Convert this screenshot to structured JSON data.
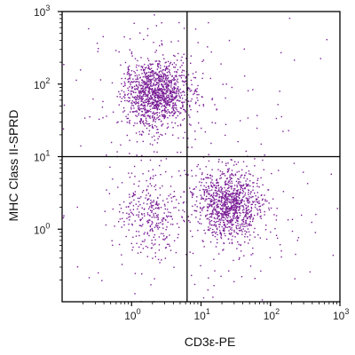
{
  "chart_data": {
    "type": "scatter",
    "title": "",
    "xlabel": "CD3ε-PE",
    "ylabel": "MHC Class II-SPRD",
    "x_scale": "log",
    "y_scale": "log",
    "xlim": [
      0.1,
      1000
    ],
    "ylim": [
      0.1,
      1000
    ],
    "x_ticks": [
      {
        "value": 1,
        "base": "10",
        "exp": "0"
      },
      {
        "value": 10,
        "base": "10",
        "exp": "1"
      },
      {
        "value": 100,
        "base": "10",
        "exp": "2"
      },
      {
        "value": 1000,
        "base": "10",
        "exp": "3"
      }
    ],
    "y_ticks": [
      {
        "value": 1,
        "base": "10",
        "exp": "0"
      },
      {
        "value": 10,
        "base": "10",
        "exp": "1"
      },
      {
        "value": 100,
        "base": "10",
        "exp": "2"
      },
      {
        "value": 1000,
        "base": "10",
        "exp": "3"
      }
    ],
    "quadrant_gates": {
      "x": 6.3,
      "y": 10
    },
    "point_color": "#7a1f96",
    "populations": [
      {
        "center_x": 2.2,
        "center_y": 75,
        "count": 1300
      },
      {
        "center_x": 25,
        "center_y": 2.2,
        "count": 1100
      },
      {
        "center_x": 1.8,
        "center_y": 1.6,
        "count": 330
      }
    ],
    "grid": false
  }
}
